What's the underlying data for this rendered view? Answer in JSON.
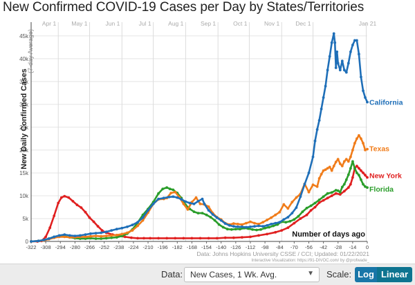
{
  "title": "New Confirmed COVID-19 Cases per Day by States/Territories",
  "chart_data": {
    "type": "line",
    "ylabel": "New Daily Confirmed Cases",
    "ylabel_sub": "(7-day Average)",
    "xlabel": "Number of days ago",
    "xlim": [
      -322,
      0
    ],
    "ylim": [
      0,
      48000
    ],
    "x_ticks": [
      -322,
      -308,
      -294,
      -280,
      -266,
      -252,
      -238,
      -224,
      -210,
      -196,
      -182,
      -168,
      -154,
      -140,
      -126,
      -112,
      -98,
      -84,
      -70,
      -56,
      -42,
      -28,
      -14,
      0
    ],
    "y_ticks": [
      0,
      5000,
      10000,
      15000,
      20000,
      25000,
      30000,
      35000,
      40000,
      45000
    ],
    "y_tick_labels": [
      "0",
      "5k",
      "10k",
      "15k",
      "20k",
      "25k",
      "30k",
      "35k",
      "40k",
      "45k"
    ],
    "month_markers": [
      {
        "label": "Apr 1",
        "x": -296
      },
      {
        "label": "May 1",
        "x": -266
      },
      {
        "label": "Jun 1",
        "x": -235
      },
      {
        "label": "Jul 1",
        "x": -205
      },
      {
        "label": "Aug 1",
        "x": -174
      },
      {
        "label": "Sep 1",
        "x": -143
      },
      {
        "label": "Oct 1",
        "x": -113
      },
      {
        "label": "Nov 1",
        "x": -82
      },
      {
        "label": "Dec 1",
        "x": -52
      },
      {
        "label": "Jan 21",
        "x": -1
      }
    ],
    "source": "Data: Johns Hopkins University CSSE / CCI; Updated: 01/22/2021",
    "credit": "Interactive Visualization: https://91-DIVOC.com/ by @profwade_",
    "grid": true,
    "series": [
      {
        "name": "California",
        "color": "#1f6fb8",
        "x": [
          -322,
          -315,
          -310,
          -305,
          -300,
          -295,
          -290,
          -285,
          -280,
          -275,
          -270,
          -265,
          -260,
          -255,
          -250,
          -245,
          -240,
          -235,
          -230,
          -225,
          -220,
          -215,
          -210,
          -205,
          -200,
          -195,
          -190,
          -186,
          -182,
          -178,
          -174,
          -170,
          -166,
          -162,
          -158,
          -156,
          -152,
          -148,
          -144,
          -140,
          -136,
          -132,
          -128,
          -124,
          -120,
          -116,
          -112,
          -108,
          -104,
          -100,
          -96,
          -92,
          -88,
          -84,
          -80,
          -76,
          -72,
          -68,
          -64,
          -60,
          -56,
          -52,
          -50,
          -48,
          -46,
          -44,
          -42,
          -40,
          -38,
          -36,
          -34,
          -32,
          -31,
          -30,
          -29,
          -28,
          -26,
          -24,
          -22,
          -20,
          -18,
          -16,
          -14,
          -12,
          -10,
          -8,
          -6,
          -4,
          -2,
          0
        ],
        "y": [
          0,
          100,
          300,
          600,
          1000,
          1300,
          1500,
          1300,
          1200,
          1300,
          1500,
          1700,
          1800,
          1900,
          2100,
          2400,
          2700,
          2900,
          3200,
          3600,
          4200,
          5200,
          6800,
          8200,
          9300,
          9500,
          9700,
          9800,
          9600,
          9200,
          8700,
          8400,
          8200,
          8800,
          9300,
          8200,
          6800,
          5900,
          5200,
          4600,
          3900,
          3500,
          3300,
          3200,
          3200,
          3100,
          3200,
          3300,
          3400,
          3300,
          3500,
          3800,
          4000,
          4200,
          4800,
          5300,
          6200,
          7400,
          9800,
          12500,
          15000,
          18500,
          22000,
          24500,
          26500,
          29000,
          31500,
          34000,
          37500,
          40500,
          43500,
          45500,
          43500,
          38000,
          41500,
          39000,
          37500,
          39500,
          37500,
          37000,
          39000,
          41500,
          43000,
          44000,
          44000,
          41000,
          36000,
          33000,
          31500,
          30500
        ]
      },
      {
        "name": "Texas",
        "color": "#f07c1a",
        "x": [
          -322,
          -315,
          -310,
          -305,
          -300,
          -295,
          -290,
          -285,
          -280,
          -275,
          -270,
          -265,
          -260,
          -255,
          -250,
          -245,
          -240,
          -235,
          -230,
          -225,
          -220,
          -215,
          -210,
          -205,
          -200,
          -195,
          -192,
          -188,
          -184,
          -180,
          -176,
          -172,
          -168,
          -164,
          -160,
          -156,
          -152,
          -148,
          -144,
          -140,
          -136,
          -132,
          -128,
          -124,
          -120,
          -116,
          -112,
          -108,
          -104,
          -100,
          -96,
          -92,
          -88,
          -84,
          -80,
          -76,
          -72,
          -68,
          -64,
          -60,
          -56,
          -52,
          -48,
          -46,
          -44,
          -42,
          -40,
          -38,
          -36,
          -34,
          -32,
          -30,
          -28,
          -26,
          -24,
          -22,
          -20,
          -18,
          -16,
          -14,
          -12,
          -10,
          -8,
          -6,
          -4,
          -2,
          0
        ],
        "y": [
          0,
          100,
          200,
          500,
          800,
          1000,
          1000,
          900,
          900,
          1000,
          1000,
          1100,
          1200,
          1100,
          1200,
          1300,
          1400,
          1600,
          1900,
          2400,
          3400,
          4600,
          6300,
          8200,
          9200,
          9300,
          9500,
          10600,
          10800,
          9700,
          8200,
          7000,
          8600,
          9600,
          8200,
          8100,
          7600,
          6200,
          5300,
          4800,
          4000,
          3700,
          3900,
          3800,
          3700,
          4000,
          4300,
          4000,
          3800,
          4200,
          4700,
          5200,
          5800,
          6400,
          8100,
          7200,
          8600,
          9600,
          10400,
          12600,
          10800,
          12400,
          12000,
          13800,
          14700,
          15500,
          15700,
          16000,
          16300,
          15500,
          16500,
          17400,
          18000,
          17000,
          16500,
          17500,
          18000,
          17500,
          18500,
          20000,
          21500,
          22500,
          23200,
          22500,
          21500,
          20000,
          20200
        ]
      },
      {
        "name": "New York",
        "color": "#e02020",
        "x": [
          -322,
          -316,
          -312,
          -308,
          -304,
          -300,
          -296,
          -293,
          -290,
          -286,
          -282,
          -278,
          -274,
          -270,
          -266,
          -262,
          -258,
          -254,
          -250,
          -244,
          -238,
          -232,
          -226,
          -220,
          -214,
          -208,
          -200,
          -192,
          -184,
          -176,
          -168,
          -160,
          -152,
          -144,
          -136,
          -128,
          -120,
          -112,
          -104,
          -96,
          -88,
          -82,
          -76,
          -70,
          -64,
          -58,
          -54,
          -50,
          -46,
          -42,
          -38,
          -34,
          -30,
          -26,
          -22,
          -18,
          -16,
          -14,
          -12,
          -10,
          -8,
          -6,
          -4,
          -2,
          0
        ],
        "y": [
          0,
          0,
          100,
          1000,
          3000,
          5600,
          8400,
          9600,
          9900,
          9600,
          8800,
          8000,
          7400,
          6400,
          5200,
          4300,
          3300,
          2400,
          1900,
          1500,
          1200,
          1000,
          800,
          700,
          700,
          700,
          700,
          700,
          700,
          700,
          700,
          700,
          700,
          700,
          800,
          800,
          900,
          1000,
          1300,
          1600,
          2000,
          2400,
          3000,
          4000,
          5000,
          5800,
          6800,
          7500,
          8500,
          9000,
          9500,
          10000,
          10500,
          10300,
          11000,
          11800,
          12500,
          14000,
          16000,
          16500,
          16000,
          15500,
          15000,
          14500,
          14000
        ]
      },
      {
        "name": "Florida",
        "color": "#2a9d2a",
        "x": [
          -322,
          -315,
          -310,
          -305,
          -300,
          -295,
          -290,
          -285,
          -280,
          -275,
          -270,
          -265,
          -260,
          -255,
          -250,
          -245,
          -240,
          -235,
          -230,
          -225,
          -220,
          -215,
          -210,
          -205,
          -200,
          -196,
          -192,
          -189,
          -186,
          -182,
          -178,
          -174,
          -170,
          -166,
          -162,
          -158,
          -154,
          -150,
          -146,
          -142,
          -138,
          -134,
          -130,
          -126,
          -122,
          -118,
          -114,
          -110,
          -106,
          -102,
          -98,
          -94,
          -90,
          -86,
          -82,
          -78,
          -74,
          -70,
          -66,
          -62,
          -58,
          -54,
          -50,
          -46,
          -42,
          -38,
          -34,
          -30,
          -28,
          -26,
          -24,
          -22,
          -20,
          -18,
          -16,
          -14,
          -12,
          -10,
          -8,
          -6,
          -4,
          -2,
          0
        ],
        "y": [
          0,
          100,
          300,
          600,
          1000,
          1200,
          1100,
          900,
          700,
          600,
          600,
          700,
          600,
          600,
          700,
          800,
          900,
          1200,
          1700,
          2600,
          4100,
          5800,
          7100,
          8600,
          10500,
          11500,
          11800,
          11500,
          11300,
          10600,
          9500,
          8000,
          7100,
          6500,
          6200,
          6200,
          5800,
          5300,
          4600,
          3700,
          3100,
          2700,
          2600,
          2700,
          2700,
          2900,
          2800,
          2600,
          2500,
          2600,
          2900,
          3100,
          3400,
          3700,
          4300,
          4200,
          4400,
          4800,
          5500,
          6500,
          7300,
          7800,
          8400,
          9100,
          9800,
          10500,
          10700,
          11200,
          11100,
          10800,
          11900,
          12500,
          13500,
          14600,
          16000,
          17500,
          16000,
          15000,
          14500,
          13500,
          12500,
          12000,
          11800
        ]
      }
    ]
  },
  "controls": {
    "data_label": "Data:",
    "data_value": "New Cases, 1 Wk. Avg.",
    "scale_label": "Scale:",
    "log_label": "Log",
    "linear_label": "Linear"
  }
}
